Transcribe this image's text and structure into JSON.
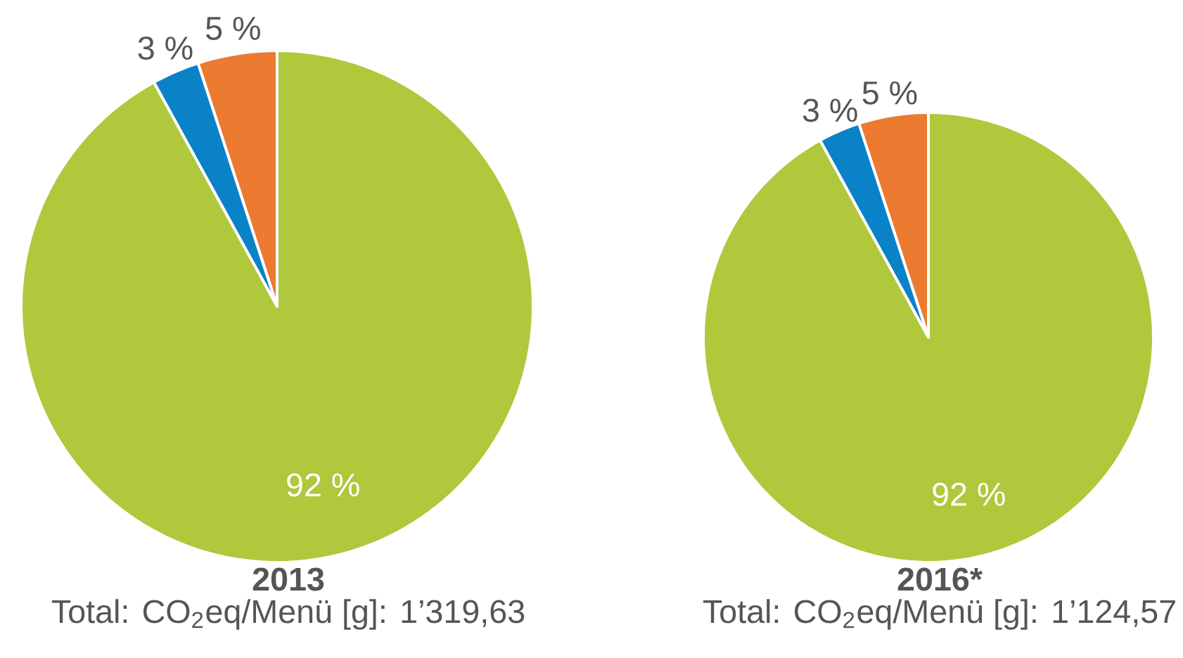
{
  "chart_data": [
    {
      "type": "pie",
      "title": "2013",
      "categories": [
        null,
        null,
        null
      ],
      "values": [
        5,
        3,
        92
      ],
      "value_labels": [
        "5 %",
        "3 %",
        "92 %"
      ],
      "colors": [
        "#ec7a30",
        "#0a82c8",
        "#afc83c"
      ],
      "annotations": [
        "Total: CO$_{2}$eq/Menü [g]: 1’319,63"
      ]
    },
    {
      "type": "pie",
      "title": "2016*",
      "categories": [
        null,
        null,
        null
      ],
      "values": [
        5,
        3,
        92
      ],
      "value_labels": [
        "5 %",
        "3 %",
        "92 %"
      ],
      "colors": [
        "#ec7a30",
        "#0a82c8",
        "#afc83c"
      ],
      "annotations": [
        "Total: CO$_{2}$eq/Menü [g]: 1’124,57"
      ]
    }
  ]
}
